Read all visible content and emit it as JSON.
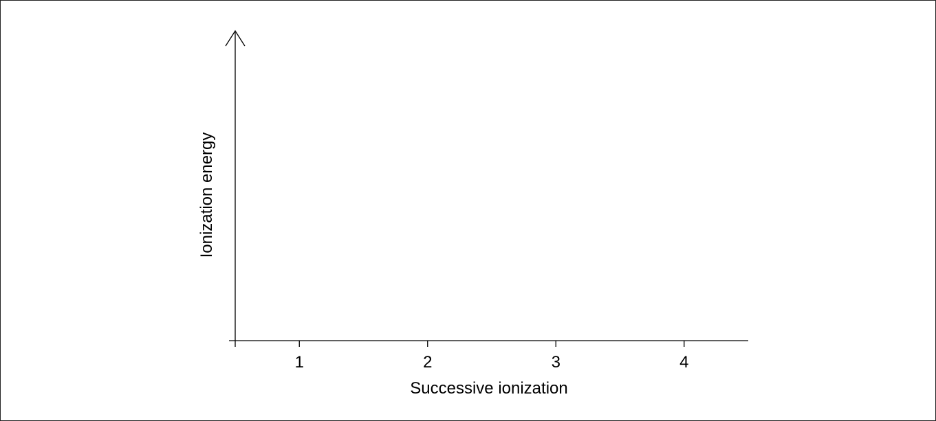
{
  "chart_data": {
    "type": "bar",
    "categories": [
      "1",
      "2",
      "3",
      "4"
    ],
    "x_ticks": [
      "1",
      "2",
      "3",
      "4"
    ],
    "xlabel": "Successive ionization",
    "ylabel": "Ionization energy",
    "xlim": [
      0.5,
      4.5
    ],
    "series": [],
    "grid": false,
    "y_axis_arrow": true
  },
  "colors": {
    "axis": "#000000",
    "frame": "#222222",
    "background": "#ffffff"
  }
}
